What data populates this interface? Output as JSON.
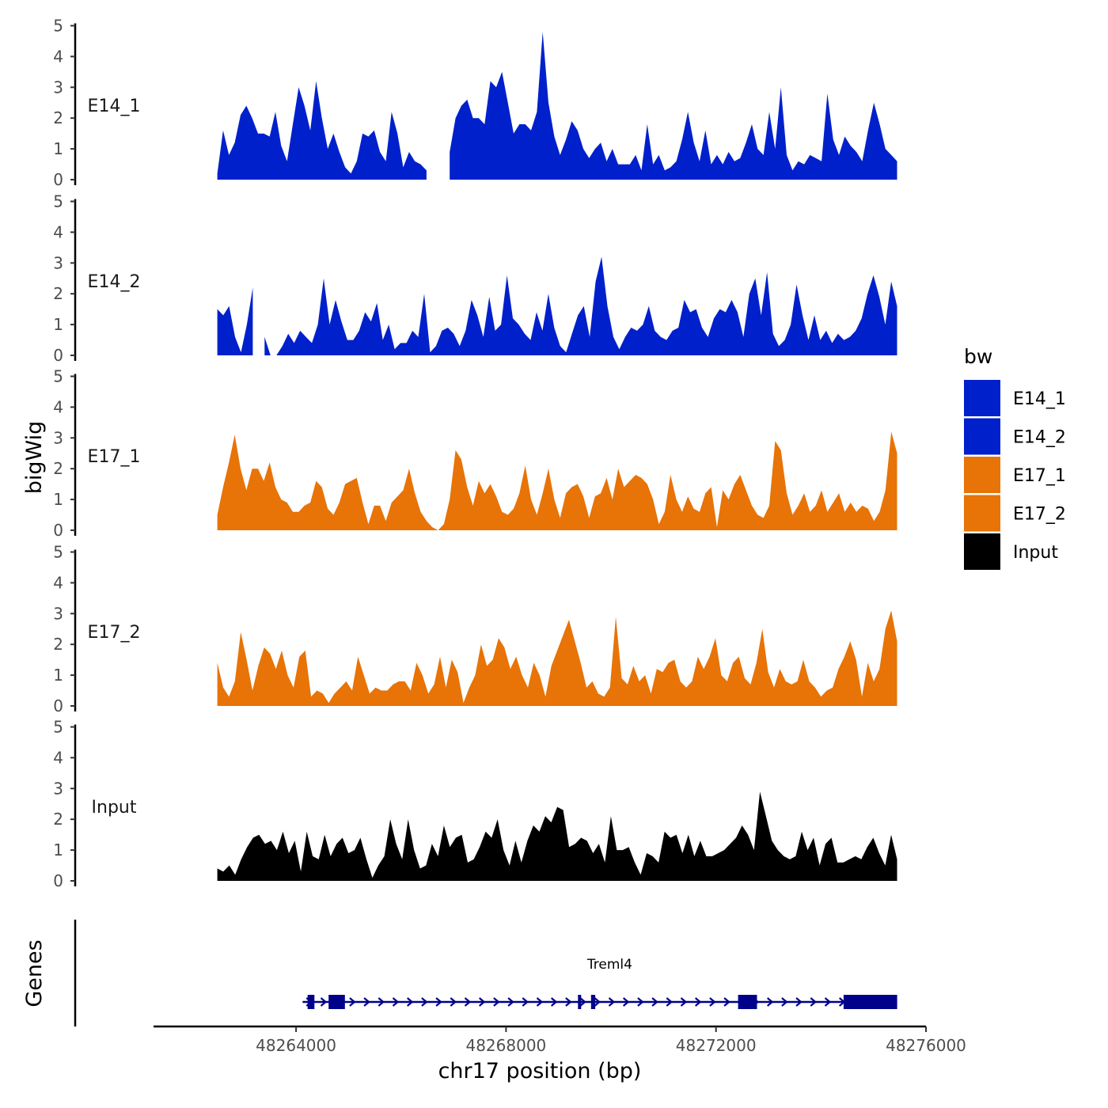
{
  "chart_data": {
    "type": "area",
    "ylabel": "bigWig",
    "xlabel": "chr17 position (bp)",
    "xlim": [
      48261300,
      48276000
    ],
    "ylim": [
      0,
      5
    ],
    "yticks": [
      "0",
      "1",
      "2",
      "3",
      "4",
      "5"
    ],
    "xticks": [
      {
        "value": 48264000,
        "label": "48264000"
      },
      {
        "value": 48268000,
        "label": "48268000"
      },
      {
        "value": 48272000,
        "label": "48272000"
      },
      {
        "value": 48276000,
        "label": "48276000"
      }
    ],
    "x_start": 48262500,
    "x_end": 48275450,
    "series": [
      {
        "name": "E14_1",
        "color": "#0020cc",
        "gap": [
          48266560,
          48266850
        ],
        "values": [
          0.2,
          1.6,
          0.8,
          1.2,
          2.1,
          2.4,
          2.0,
          1.5,
          1.5,
          1.4,
          2.2,
          1.1,
          0.6,
          1.8,
          3.0,
          2.4,
          1.6,
          3.2,
          2.0,
          1.0,
          1.5,
          0.9,
          0.4,
          0.2,
          0.6,
          1.5,
          1.4,
          1.6,
          0.9,
          0.6,
          2.2,
          1.5,
          0.4,
          0.9,
          0.6,
          0.5,
          0.3,
          0.1,
          0.1,
          0.3,
          0.9,
          2.0,
          2.4,
          2.6,
          2.0,
          2.0,
          1.8,
          3.2,
          3.0,
          3.5,
          2.5,
          1.5,
          1.8,
          1.8,
          1.6,
          2.2,
          4.8,
          2.5,
          1.4,
          0.8,
          1.3,
          1.9,
          1.6,
          1.0,
          0.7,
          1.0,
          1.2,
          0.6,
          1.0,
          0.5,
          0.5,
          0.5,
          0.8,
          0.3,
          1.8,
          0.5,
          0.8,
          0.3,
          0.4,
          0.6,
          1.3,
          2.2,
          1.2,
          0.6,
          1.6,
          0.5,
          0.8,
          0.5,
          0.9,
          0.6,
          0.7,
          1.2,
          1.8,
          1.0,
          0.8,
          2.2,
          1.0,
          3.0,
          0.8,
          0.3,
          0.6,
          0.5,
          0.8,
          0.7,
          0.6,
          2.8,
          1.3,
          0.8,
          1.4,
          1.1,
          0.9,
          0.6,
          1.6,
          2.5,
          1.8,
          1.0,
          0.8,
          0.6
        ]
      },
      {
        "name": "E14_2",
        "color": "#0020cc",
        "gap": [
          48263220,
          48263300
        ],
        "values": [
          1.5,
          1.3,
          1.6,
          0.6,
          0.1,
          1.0,
          2.2,
          1.4,
          0.6,
          0.0,
          0.0,
          0.3,
          0.7,
          0.4,
          0.8,
          0.6,
          0.4,
          1.0,
          2.5,
          1.0,
          1.8,
          1.1,
          0.5,
          0.5,
          0.8,
          1.4,
          1.1,
          1.7,
          0.5,
          1.0,
          0.2,
          0.4,
          0.4,
          0.8,
          0.6,
          2.0,
          0.1,
          0.3,
          0.8,
          0.9,
          0.7,
          0.3,
          0.8,
          1.8,
          1.3,
          0.6,
          1.9,
          0.8,
          1.0,
          2.6,
          1.2,
          1.0,
          0.7,
          0.5,
          1.4,
          0.8,
          2.0,
          0.9,
          0.3,
          0.1,
          0.7,
          1.3,
          1.6,
          0.6,
          2.4,
          3.2,
          1.6,
          0.6,
          0.2,
          0.6,
          0.9,
          0.8,
          1.0,
          1.6,
          0.8,
          0.6,
          0.5,
          0.8,
          0.9,
          1.8,
          1.4,
          1.5,
          0.9,
          0.6,
          1.2,
          1.5,
          1.4,
          1.8,
          1.4,
          0.6,
          2.0,
          2.5,
          1.3,
          2.7,
          0.7,
          0.3,
          0.5,
          1.0,
          2.3,
          1.3,
          0.5,
          1.3,
          0.5,
          0.8,
          0.4,
          0.7,
          0.5,
          0.6,
          0.8,
          1.2,
          2.0,
          2.6,
          1.9,
          1.0,
          2.4,
          1.6
        ]
      },
      {
        "name": "E17_1",
        "color": "#e87306",
        "gap": null,
        "values": [
          0.5,
          1.4,
          2.2,
          3.1,
          2.0,
          1.3,
          2.0,
          2.0,
          1.6,
          2.2,
          1.4,
          1.0,
          0.9,
          0.6,
          0.6,
          0.8,
          0.9,
          1.6,
          1.4,
          0.7,
          0.5,
          0.9,
          1.5,
          1.6,
          1.7,
          0.9,
          0.2,
          0.8,
          0.8,
          0.3,
          0.9,
          1.1,
          1.3,
          2.0,
          1.2,
          0.6,
          0.3,
          0.1,
          0.0,
          0.2,
          1.0,
          2.6,
          2.3,
          1.4,
          0.8,
          1.6,
          1.2,
          1.5,
          1.1,
          0.6,
          0.5,
          0.7,
          1.2,
          2.1,
          1.0,
          0.5,
          1.2,
          2.0,
          1.0,
          0.4,
          1.2,
          1.4,
          1.5,
          1.1,
          0.4,
          1.1,
          1.2,
          1.7,
          1.0,
          2.0,
          1.4,
          1.6,
          1.8,
          1.7,
          1.5,
          1.0,
          0.2,
          0.6,
          1.8,
          1.0,
          0.6,
          1.1,
          0.7,
          0.6,
          1.2,
          1.4,
          0.1,
          1.3,
          1.0,
          1.5,
          1.8,
          1.3,
          0.8,
          0.5,
          0.4,
          0.8,
          2.9,
          2.6,
          1.2,
          0.5,
          0.8,
          1.2,
          0.6,
          0.8,
          1.3,
          0.6,
          0.9,
          1.2,
          0.6,
          0.9,
          0.6,
          0.8,
          0.7,
          0.3,
          0.6,
          1.3,
          3.2,
          2.5
        ]
      },
      {
        "name": "E17_2",
        "color": "#e87306",
        "gap": null,
        "values": [
          1.4,
          0.6,
          0.3,
          0.8,
          2.4,
          1.5,
          0.5,
          1.3,
          1.9,
          1.7,
          1.2,
          1.8,
          1.0,
          0.6,
          1.6,
          1.8,
          0.3,
          0.5,
          0.4,
          0.1,
          0.4,
          0.6,
          0.8,
          0.5,
          1.6,
          1.0,
          0.4,
          0.6,
          0.5,
          0.5,
          0.7,
          0.8,
          0.8,
          0.5,
          1.4,
          1.0,
          0.4,
          0.7,
          1.6,
          0.6,
          1.5,
          1.1,
          0.1,
          0.6,
          1.0,
          2.0,
          1.3,
          1.5,
          2.2,
          1.9,
          1.2,
          1.6,
          1.0,
          0.6,
          1.4,
          1.0,
          0.3,
          1.3,
          1.8,
          2.3,
          2.8,
          2.1,
          1.4,
          0.6,
          0.8,
          0.4,
          0.3,
          0.6,
          2.9,
          0.9,
          0.7,
          1.3,
          0.8,
          1.0,
          0.4,
          1.2,
          1.1,
          1.4,
          1.5,
          0.8,
          0.6,
          0.8,
          1.6,
          1.2,
          1.6,
          2.2,
          1.0,
          0.8,
          1.4,
          1.6,
          0.9,
          0.7,
          1.4,
          2.5,
          1.1,
          0.6,
          1.2,
          0.8,
          0.7,
          0.8,
          1.5,
          0.8,
          0.6,
          0.3,
          0.5,
          0.6,
          1.2,
          1.6,
          2.1,
          1.5,
          0.3,
          1.4,
          0.8,
          1.2,
          2.5,
          3.1,
          2.1
        ]
      },
      {
        "name": "Input",
        "color": "#000000",
        "gap": null,
        "values": [
          0.4,
          0.3,
          0.5,
          0.2,
          0.7,
          1.1,
          1.4,
          1.5,
          1.2,
          1.3,
          1.0,
          1.6,
          0.9,
          1.3,
          0.3,
          1.6,
          0.8,
          0.7,
          1.5,
          0.8,
          1.2,
          1.4,
          0.9,
          1.0,
          1.4,
          0.7,
          0.1,
          0.5,
          0.8,
          2.0,
          1.2,
          0.7,
          2.0,
          1.0,
          0.4,
          0.5,
          1.2,
          0.8,
          1.8,
          1.1,
          1.4,
          1.5,
          0.6,
          0.7,
          1.1,
          1.6,
          1.4,
          2.0,
          1.0,
          0.5,
          1.3,
          0.6,
          1.3,
          1.8,
          1.6,
          2.1,
          1.9,
          2.4,
          2.3,
          1.1,
          1.2,
          1.4,
          1.3,
          0.9,
          1.2,
          0.6,
          2.1,
          1.0,
          1.0,
          1.1,
          0.6,
          0.2,
          0.9,
          0.8,
          0.6,
          1.6,
          1.4,
          1.5,
          0.9,
          1.5,
          0.8,
          1.3,
          0.8,
          0.8,
          0.9,
          1.0,
          1.2,
          1.4,
          1.8,
          1.5,
          1.0,
          2.9,
          2.1,
          1.3,
          1.0,
          0.8,
          0.7,
          0.8,
          1.6,
          1.0,
          1.4,
          0.5,
          1.2,
          1.4,
          0.6,
          0.6,
          0.7,
          0.8,
          0.7,
          1.1,
          1.4,
          0.9,
          0.5,
          1.5,
          0.7
        ]
      }
    ],
    "legend": {
      "title": "bw",
      "entries": [
        {
          "label": "E14_1",
          "color": "#0020cc"
        },
        {
          "label": "E14_2",
          "color": "#0020cc"
        },
        {
          "label": "E17_1",
          "color": "#e87306"
        },
        {
          "label": "E17_2",
          "color": "#e87306"
        },
        {
          "label": "Input",
          "color": "#000000"
        }
      ]
    },
    "genes": {
      "track_title": "Genes",
      "gene_name": "Treml4",
      "color": "#00008b",
      "strand": "+",
      "start": 48264200,
      "end": 48275450,
      "exons": [
        [
          48264220,
          48264350
        ],
        [
          48264620,
          48264930
        ],
        [
          48269370,
          48269430
        ],
        [
          48269620,
          48269700
        ],
        [
          48272420,
          48272780
        ],
        [
          48274430,
          48275450
        ]
      ]
    }
  }
}
